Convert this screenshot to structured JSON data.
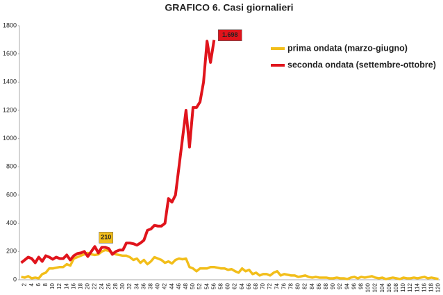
{
  "chart_data": {
    "type": "line",
    "title": "GRAFICO 6. Casi giornalieri",
    "categories": [
      null,
      2,
      null,
      4,
      null,
      6,
      null,
      8,
      null,
      10,
      null,
      12,
      null,
      14,
      null,
      16,
      null,
      18,
      null,
      20,
      null,
      22,
      null,
      24,
      null,
      26,
      null,
      28,
      null,
      30,
      null,
      32,
      null,
      34,
      null,
      36,
      null,
      38,
      null,
      40,
      null,
      42,
      null,
      44,
      null,
      46,
      null,
      48,
      null,
      50,
      null,
      52,
      null,
      54,
      null,
      56,
      null,
      58,
      null,
      60,
      null,
      62,
      null,
      64,
      null,
      66,
      null,
      68,
      null,
      70,
      null,
      72,
      null,
      74,
      null,
      76,
      null,
      78,
      null,
      80,
      null,
      82,
      null,
      84,
      null,
      86,
      null,
      88,
      null,
      90,
      null,
      92,
      null,
      94,
      null,
      96,
      null,
      98,
      null,
      100,
      null,
      102,
      null,
      104,
      null,
      106,
      null,
      108,
      null,
      110,
      null,
      112,
      null,
      114,
      null,
      116,
      null,
      118,
      null,
      120
    ],
    "series": [
      {
        "name": "prima ondata (marzo-giugno)",
        "color": "#f2be1a",
        "values": [
          20,
          15,
          25,
          10,
          15,
          10,
          40,
          50,
          80,
          80,
          85,
          90,
          90,
          110,
          100,
          150,
          160,
          170,
          180,
          190,
          180,
          175,
          180,
          200,
          210,
          205,
          190,
          180,
          175,
          170,
          170,
          160,
          140,
          150,
          120,
          140,
          110,
          130,
          160,
          150,
          140,
          120,
          130,
          115,
          140,
          150,
          145,
          150,
          90,
          80,
          60,
          80,
          80,
          80,
          90,
          90,
          85,
          80,
          80,
          70,
          75,
          60,
          50,
          80,
          60,
          70,
          40,
          50,
          30,
          40,
          40,
          30,
          50,
          60,
          30,
          40,
          35,
          30,
          30,
          20,
          25,
          30,
          20,
          15,
          20,
          15,
          15,
          15,
          10,
          10,
          15,
          10,
          10,
          5,
          15,
          20,
          10,
          20,
          15,
          20,
          25,
          15,
          10,
          15,
          5,
          10,
          15,
          10,
          5,
          15,
          10,
          10,
          15,
          10,
          15,
          20,
          10,
          15,
          10,
          5
        ],
        "value_labels": [
          null,
          null,
          null,
          null,
          null,
          null,
          null,
          null,
          null,
          null,
          null,
          null,
          null,
          null,
          null,
          null,
          null,
          null,
          null,
          null,
          null,
          null,
          null,
          null,
          "210",
          null,
          null,
          null,
          null,
          null,
          null,
          null,
          null,
          null,
          null,
          null,
          null,
          null,
          null,
          null,
          null,
          null,
          null,
          null,
          null,
          null,
          null,
          null,
          null,
          null,
          null,
          null,
          null,
          null,
          null,
          null,
          null,
          null,
          null,
          null,
          null,
          null,
          null,
          null,
          null,
          null,
          null,
          null,
          null,
          null,
          null,
          null,
          null,
          null,
          null,
          null,
          null,
          null,
          null,
          null,
          null,
          null,
          null,
          null,
          null,
          null,
          null,
          null,
          null,
          null,
          null,
          null,
          null,
          null,
          null,
          null,
          null,
          null,
          null,
          null,
          null,
          null,
          null,
          null,
          null,
          null,
          null,
          null,
          null,
          null,
          null,
          null,
          null,
          null,
          null,
          null,
          null,
          null,
          null,
          null
        ]
      },
      {
        "name": "seconda ondata (settembre-ottobre)",
        "color": "#e0141c",
        "values": [
          120,
          140,
          160,
          150,
          120,
          160,
          130,
          170,
          160,
          145,
          160,
          150,
          150,
          175,
          140,
          170,
          185,
          190,
          200,
          165,
          200,
          235,
          190,
          230,
          230,
          220,
          180,
          200,
          210,
          210,
          260,
          260,
          255,
          245,
          260,
          280,
          350,
          360,
          385,
          380,
          380,
          400,
          575,
          550,
          600,
          800,
          1000,
          1200,
          940,
          1220,
          1220,
          1260,
          1400,
          1690,
          1540,
          1698,
          null,
          null,
          null,
          null,
          null,
          null,
          null,
          null,
          null,
          null,
          null,
          null,
          null,
          null,
          null,
          null,
          null,
          null,
          null,
          null,
          null,
          null,
          null,
          null,
          null,
          null,
          null,
          null,
          null,
          null,
          null,
          null,
          null,
          null,
          null,
          null,
          null,
          null,
          null,
          null,
          null,
          null,
          null,
          null,
          null,
          null,
          null,
          null,
          null,
          null,
          null,
          null,
          null,
          null,
          null,
          null,
          null,
          null,
          null,
          null,
          null,
          null,
          null,
          null
        ],
        "value_labels": [
          null,
          null,
          null,
          null,
          null,
          null,
          null,
          null,
          null,
          null,
          null,
          null,
          null,
          null,
          null,
          null,
          null,
          null,
          null,
          null,
          null,
          null,
          null,
          null,
          null,
          null,
          null,
          null,
          null,
          null,
          null,
          null,
          null,
          null,
          null,
          null,
          null,
          null,
          null,
          null,
          null,
          null,
          null,
          null,
          null,
          null,
          null,
          null,
          null,
          null,
          null,
          null,
          null,
          null,
          null,
          "1.698",
          null,
          null,
          null,
          null,
          null,
          null,
          null,
          null,
          null,
          null,
          null,
          null,
          null,
          null,
          null,
          null,
          null,
          null,
          null,
          null,
          null,
          null,
          null,
          null,
          null,
          null,
          null,
          null,
          null,
          null,
          null,
          null,
          null,
          null,
          null,
          null,
          null,
          null,
          null,
          null,
          null,
          null,
          null,
          null,
          null,
          null,
          null,
          null,
          null,
          null,
          null,
          null,
          null,
          null,
          null,
          null,
          null,
          null,
          null,
          null,
          null,
          null,
          null,
          null
        ]
      }
    ],
    "ylim": [
      0,
      1800
    ],
    "yticks": [
      0,
      200,
      400,
      600,
      800,
      1000,
      1200,
      1400,
      1600,
      1800
    ],
    "grid": false
  }
}
